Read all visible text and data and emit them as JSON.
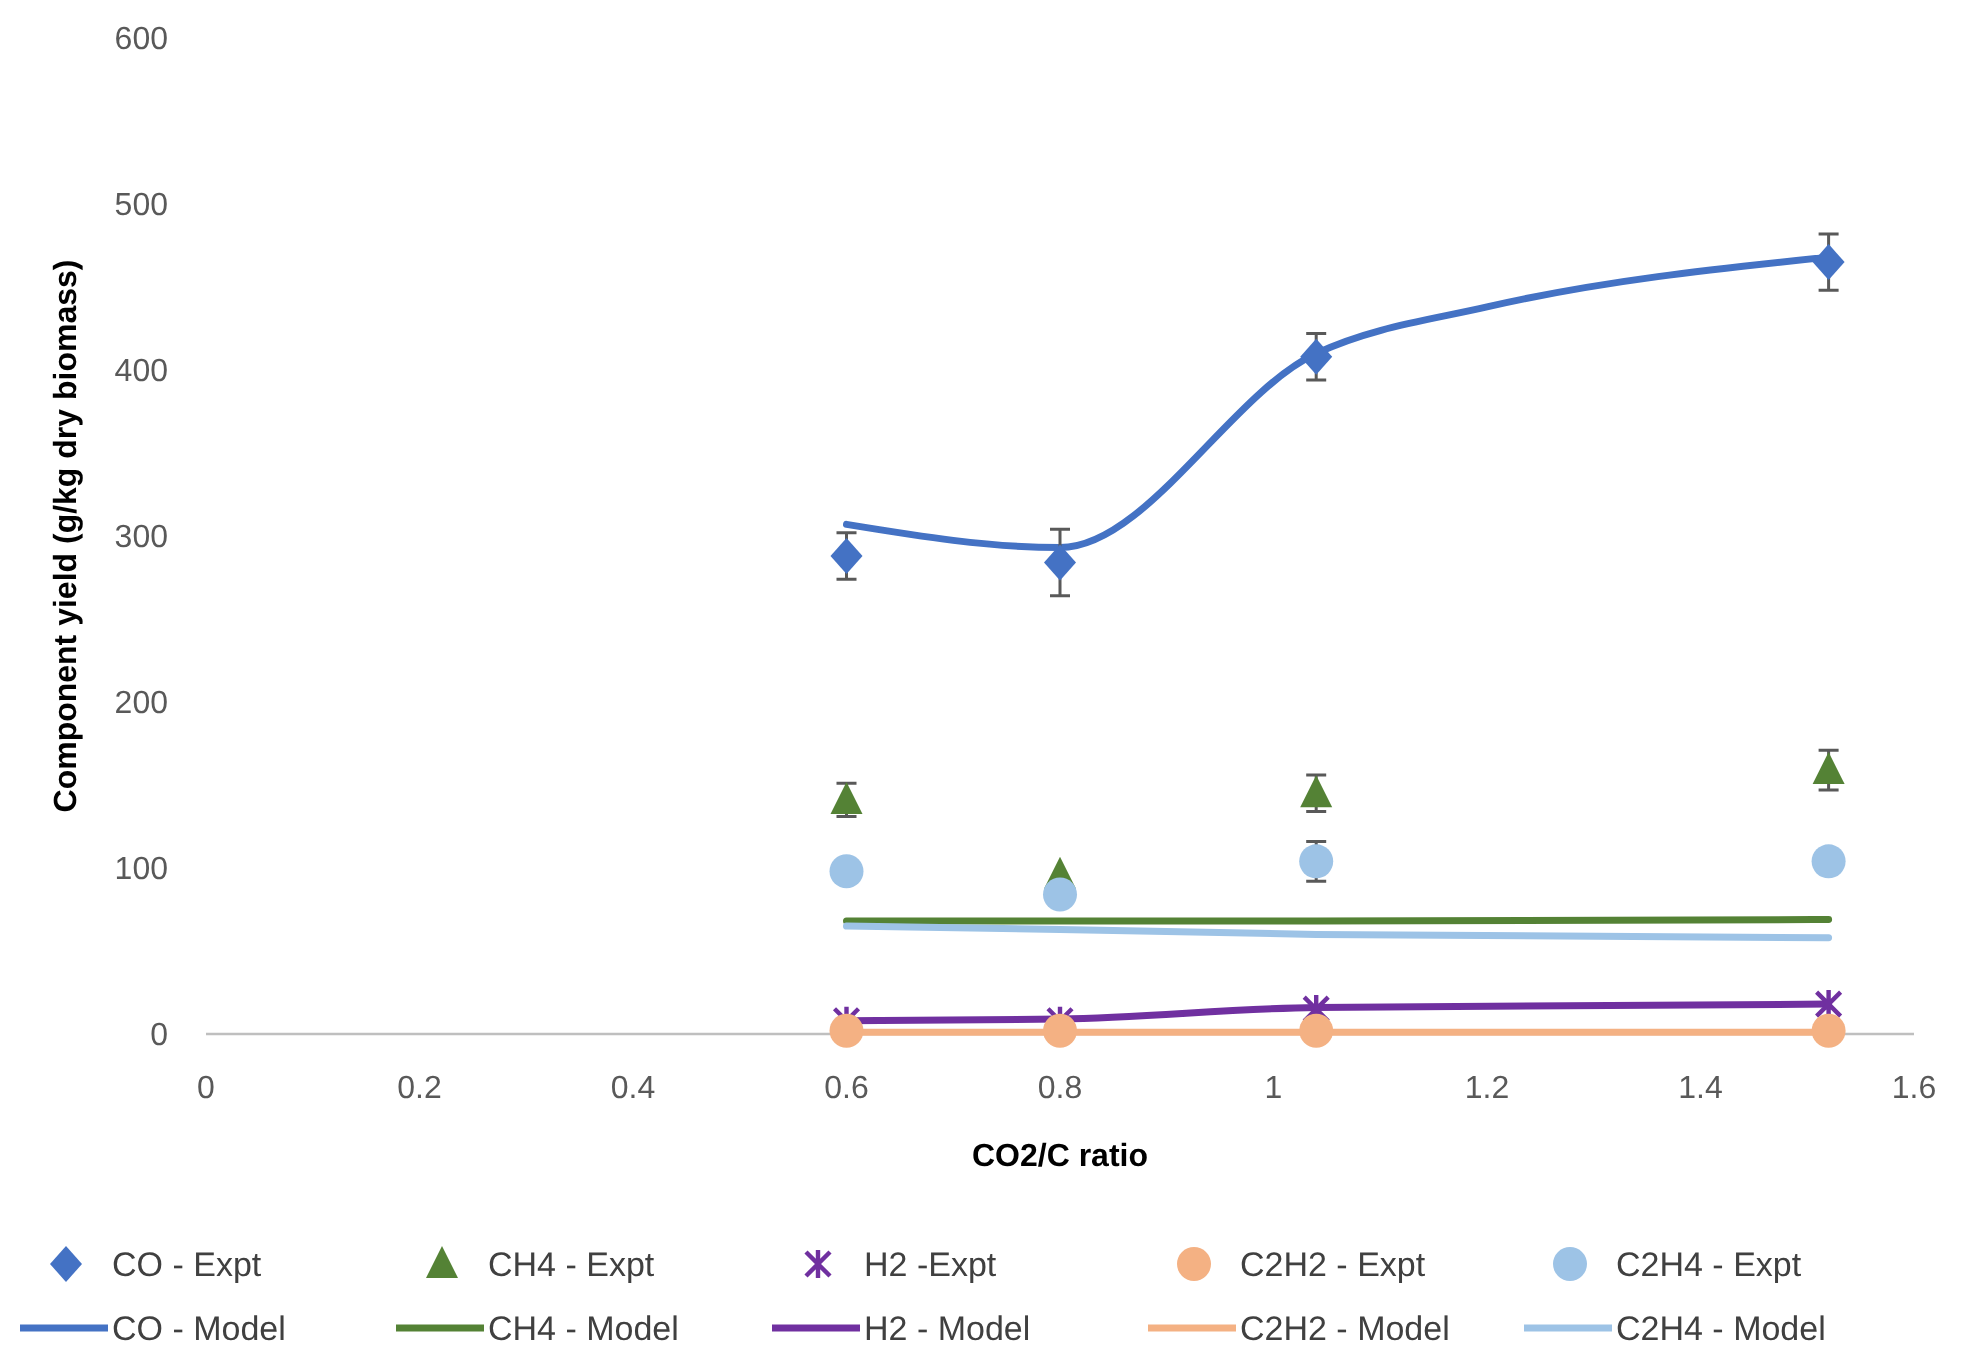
{
  "chart_data": {
    "type": "scatter",
    "xlabel": "CO2/C ratio",
    "ylabel": "Component yield (g/kg dry biomass)",
    "xlim": [
      0,
      1.6
    ],
    "xticks": [
      0,
      0.2,
      0.4,
      0.6,
      0.8,
      1,
      1.2,
      1.4,
      1.6
    ],
    "ylim": [
      0,
      600
    ],
    "yticks": [
      0,
      100,
      200,
      300,
      400,
      500,
      600
    ],
    "grid": false,
    "legend": "bottom",
    "series": [
      {
        "name": "CO - Expt",
        "marker": "diamond",
        "color": "#4472c4",
        "x": [
          0.6,
          0.8,
          1.04,
          1.52
        ],
        "values": [
          288,
          284,
          408,
          465
        ],
        "errors": [
          14,
          20,
          14,
          17
        ]
      },
      {
        "name": "CH4 - Expt",
        "marker": "triangle",
        "color": "#548235",
        "x": [
          0.6,
          0.8,
          1.04,
          1.52
        ],
        "values": [
          141,
          96,
          145,
          159
        ],
        "errors": [
          10,
          null,
          11,
          12
        ]
      },
      {
        "name": "H2 -Expt",
        "marker": "cross",
        "color": "#7030a0",
        "x": [
          0.6,
          0.8,
          1.04,
          1.52
        ],
        "values": [
          8,
          8,
          15,
          18
        ]
      },
      {
        "name": "C2H2 - Expt",
        "marker": "circle",
        "color": "#f4b183",
        "x": [
          0.6,
          0.8,
          1.04,
          1.52
        ],
        "values": [
          2,
          2,
          2,
          2
        ]
      },
      {
        "name": "C2H4 - Expt",
        "marker": "circle",
        "color": "#9dc3e6",
        "x": [
          0.6,
          0.8,
          1.04,
          1.52
        ],
        "values": [
          98,
          84,
          104,
          104
        ],
        "errors": [
          null,
          null,
          12,
          null
        ]
      },
      {
        "name": "CO - Model",
        "type": "line",
        "color": "#4472c4",
        "x": [
          0.6,
          0.8,
          1.04,
          1.2,
          1.52
        ],
        "values": [
          307,
          293,
          410,
          438,
          468
        ]
      },
      {
        "name": "CH4 - Model",
        "type": "line",
        "color": "#548235",
        "x": [
          0.6,
          0.8,
          1.04,
          1.52
        ],
        "values": [
          68,
          68,
          68,
          69
        ]
      },
      {
        "name": "H2 - Model",
        "type": "line",
        "color": "#7030a0",
        "x": [
          0.6,
          0.8,
          1.04,
          1.52
        ],
        "values": [
          8,
          9,
          16,
          18
        ]
      },
      {
        "name": "C2H2 - Model",
        "type": "line",
        "color": "#f4b183",
        "x": [
          0.6,
          0.8,
          1.04,
          1.52
        ],
        "values": [
          1,
          1,
          1,
          1
        ]
      },
      {
        "name": "C2H4 - Model",
        "type": "line",
        "color": "#9dc3e6",
        "x": [
          0.6,
          0.8,
          1.04,
          1.52
        ],
        "values": [
          65,
          63,
          60,
          58
        ]
      }
    ]
  }
}
